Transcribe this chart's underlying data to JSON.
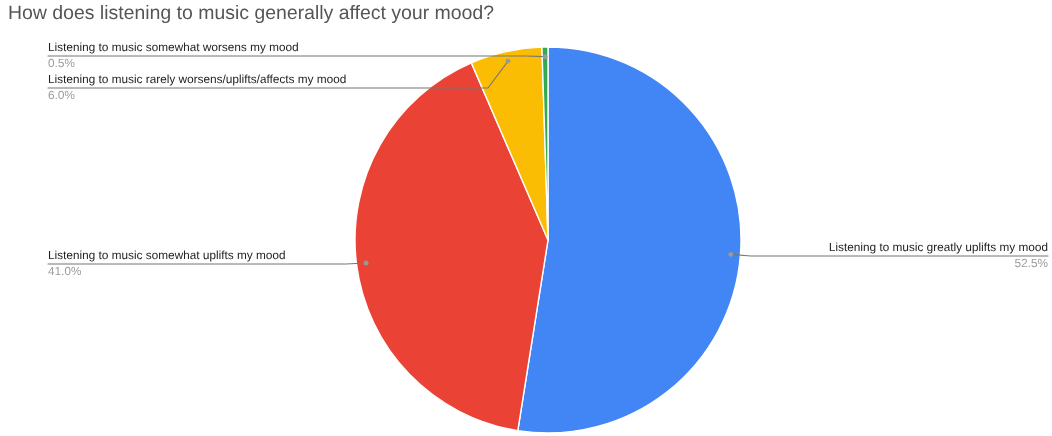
{
  "chart_data": {
    "type": "pie",
    "title": "How does listening to music generally affect your mood?",
    "categories": [
      "Listening to music greatly uplifts my mood",
      "Listening to music somewhat uplifts my mood",
      "Listening to music rarely worsens/uplifts/affects my mood",
      "Listening to music somewhat worsens my mood"
    ],
    "values": [
      52.5,
      41.0,
      6.0,
      0.5
    ],
    "value_labels": [
      "52.5%",
      "41.0%",
      "6.0%",
      "0.5%"
    ],
    "colors": [
      "#4285f4",
      "#ea4335",
      "#fbbc04",
      "#34a853"
    ],
    "legend": false
  }
}
